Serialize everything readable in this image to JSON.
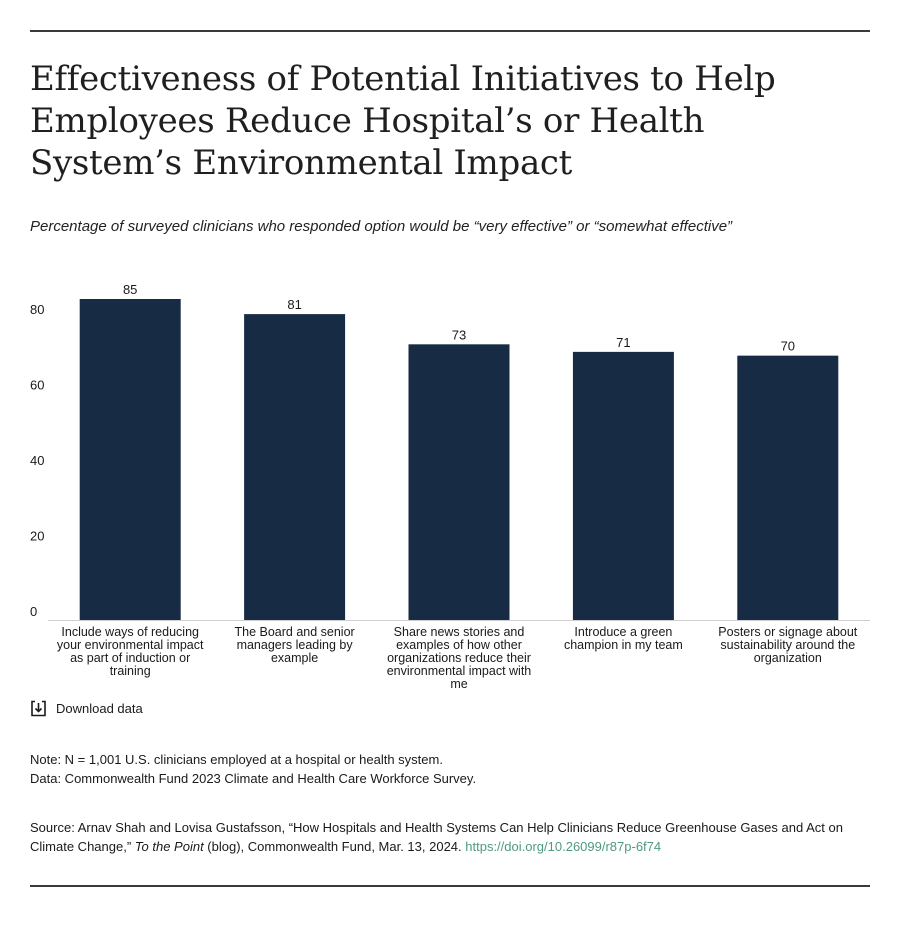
{
  "title": "Effectiveness of Potential Initiatives to Help Employees Reduce Hospital’s or Health System’s Environmental Impact",
  "subtitle": "Percentage of surveyed clinicians who responded option would be “very effective” or “somewhat effective”",
  "chart_data": {
    "type": "bar",
    "categories": [
      [
        "Include ways of reducing",
        "your environmental impact",
        "as part of induction or",
        "training"
      ],
      [
        "The Board and senior",
        "managers leading by",
        "example"
      ],
      [
        "Share news stories and",
        "examples of how other",
        "organizations reduce their",
        "environmental impact with",
        "me"
      ],
      [
        "Introduce a green",
        "champion in my team"
      ],
      [
        "Posters or signage about",
        "sustainability around the",
        "organization"
      ]
    ],
    "category_names": [
      "Include ways of reducing your environmental impact as part of induction or training",
      "The Board and senior managers leading by example",
      "Share news stories and examples of how other organizations reduce their environmental impact with me",
      "Introduce a green champion in my team",
      "Posters or signage about sustainability around the organization"
    ],
    "values": [
      85,
      81,
      73,
      71,
      70
    ],
    "value_labels": [
      "85",
      "81",
      "73",
      "71",
      "70"
    ],
    "yticks": [
      0,
      20,
      40,
      60,
      80
    ],
    "ylim": [
      0,
      85
    ],
    "grid": false,
    "bar_color": "#182b44",
    "xlabel": "",
    "ylabel": ""
  },
  "download_label": "Download data",
  "note": "Note: N = 1,001 U.S. clinicians employed at a hospital or health system.",
  "data_source": "Data: Commonwealth Fund 2023 Climate and Health Care Workforce Survey.",
  "source": {
    "prefix": "Source: Arnav Shah and Lovisa Gustafsson, “How Hospitals and Health Systems Can Help Clinicians Reduce Greenhouse Gases and Act on Climate Change,” ",
    "publication": "To the Point",
    "suffix": " (blog), Commonwealth Fund, Mar. 13, 2024. ",
    "link_text": "https://doi.org/10.26099/r87p-6f74"
  },
  "colors": {
    "bar": "#182b44",
    "link": "#4f9a85",
    "rule": "#3a3a3a"
  }
}
